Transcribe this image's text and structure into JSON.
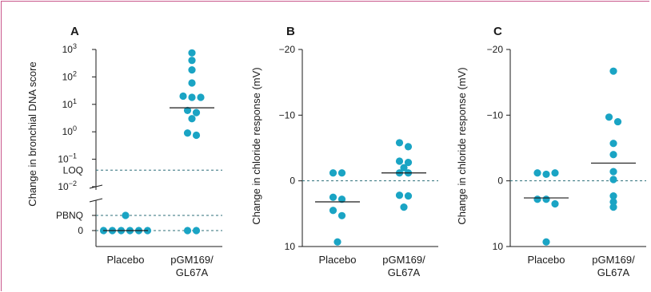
{
  "colors": {
    "point": "#1aa4c4",
    "reference": "#2d6f7a",
    "frame": "#c9588c"
  },
  "chart_data": [
    {
      "type": "scatter",
      "panel": "A",
      "ylabel": "Change in bronchial DNA score",
      "yscale": "log-with-broken-linear",
      "log_ticks": [
        {
          "value": 1000,
          "base": "10",
          "exp": "3"
        },
        {
          "value": 100,
          "base": "10",
          "exp": "2"
        },
        {
          "value": 10,
          "base": "10",
          "exp": "1"
        },
        {
          "value": 1,
          "base": "10",
          "exp": "0"
        },
        {
          "value": 0.1,
          "base": "10",
          "exp": "−1"
        },
        {
          "value": 0.01,
          "base": "10",
          "exp": "−2"
        }
      ],
      "log_range": [
        0.01,
        1000
      ],
      "linear_ticks": [
        {
          "value": "PBNQ",
          "label": "PBNQ"
        },
        {
          "value": 0,
          "label": "0"
        }
      ],
      "reference_lines": [
        {
          "label": "LOQ",
          "value": 0.04
        },
        {
          "label": "PBNQ",
          "value": "PBNQ"
        },
        {
          "label": "0",
          "value": 0
        }
      ],
      "categories": [
        "Placebo",
        "pGM169/\nGL67A"
      ],
      "category_lines": [
        [
          "Placebo"
        ],
        [
          "pGM169/",
          "GL67A"
        ]
      ],
      "series": [
        {
          "category": "Placebo",
          "values": [
            0,
            0,
            0,
            0,
            0,
            0,
            "PBNQ"
          ],
          "median": 0
        },
        {
          "category": "pGM169/GL67A",
          "values": [
            750,
            400,
            180,
            60,
            20,
            18,
            18,
            6,
            5,
            3,
            0.9,
            0.75,
            0,
            0
          ],
          "median": 7.5
        }
      ]
    },
    {
      "type": "scatter",
      "panel": "B",
      "ylabel": "Change in chloride response (mV)",
      "ylim": [
        10,
        -20
      ],
      "yticks": [
        -20,
        -10,
        0,
        10
      ],
      "ytick_labels": [
        "−20",
        "−10",
        "0",
        "10"
      ],
      "reference_line": 0,
      "categories": [
        "Placebo",
        "pGM169/\nGL67A"
      ],
      "category_lines": [
        [
          "Placebo"
        ],
        [
          "pGM169/",
          "GL67A"
        ]
      ],
      "series": [
        {
          "category": "Placebo",
          "values": [
            -1.2,
            -1.2,
            2.5,
            4.5,
            2.8,
            5.3,
            9.3
          ],
          "median": 3.2
        },
        {
          "category": "pGM169/GL67A",
          "values": [
            -5.8,
            -5.2,
            -3.0,
            -2.8,
            -1.2,
            -1.2,
            -2.0,
            2.2,
            2.3,
            4.0
          ],
          "median": -1.2
        }
      ]
    },
    {
      "type": "scatter",
      "panel": "C",
      "ylabel": "Change in chloride response (mV)",
      "ylim": [
        10,
        -20
      ],
      "yticks": [
        -20,
        -10,
        0,
        10
      ],
      "ytick_labels": [
        "−20",
        "−10",
        "0",
        "10"
      ],
      "reference_line": 0,
      "categories": [
        "Placebo",
        "pGM169/\nGL67A"
      ],
      "category_lines": [
        [
          "Placebo"
        ],
        [
          "pGM169/",
          "GL67A"
        ]
      ],
      "series": [
        {
          "category": "Placebo",
          "values": [
            -1.2,
            -1.0,
            -1.2,
            2.8,
            2.8,
            3.5,
            9.3
          ],
          "median": 2.6
        },
        {
          "category": "pGM169/GL67A",
          "values": [
            -16.7,
            -9.7,
            -9.0,
            -5.7,
            -4.0,
            -1.4,
            2.3,
            3.2,
            4.0,
            -0.2
          ],
          "median": -2.7
        }
      ]
    }
  ]
}
